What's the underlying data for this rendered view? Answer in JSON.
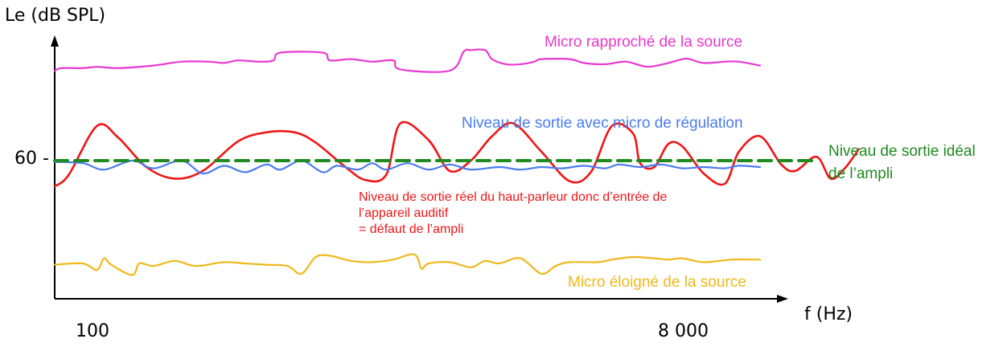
{
  "chart_data": {
    "type": "line",
    "ylabel": "Le (dB SPL)",
    "xlabel": "f (Hz)",
    "x_ticks": [
      "100",
      "8 000"
    ],
    "y_ticks": [
      "60 -"
    ],
    "series": [
      {
        "name": "Micro rapproché de la source",
        "color": "#e838d0",
        "line_style": "solid",
        "points": [
          [
            0,
            -0.7
          ],
          [
            0.01,
            -0.72
          ],
          [
            0.04,
            -0.72
          ],
          [
            0.06,
            -0.73
          ],
          [
            0.09,
            -0.72
          ],
          [
            0.14,
            -0.74
          ],
          [
            0.18,
            -0.77
          ],
          [
            0.22,
            -0.77
          ],
          [
            0.24,
            -0.76
          ],
          [
            0.26,
            -0.78
          ],
          [
            0.29,
            -0.77
          ],
          [
            0.31,
            -0.78
          ],
          [
            0.32,
            -0.84
          ],
          [
            0.38,
            -0.84
          ],
          [
            0.39,
            -0.78
          ],
          [
            0.42,
            -0.79
          ],
          [
            0.45,
            -0.77
          ],
          [
            0.48,
            -0.78
          ],
          [
            0.49,
            -0.71
          ],
          [
            0.56,
            -0.7
          ],
          [
            0.58,
            -0.85
          ],
          [
            0.59,
            -0.86
          ],
          [
            0.61,
            -0.86
          ],
          [
            0.62,
            -0.79
          ],
          [
            0.64,
            -0.75
          ],
          [
            0.66,
            -0.75
          ],
          [
            0.68,
            -0.77
          ],
          [
            0.69,
            -0.79
          ],
          [
            0.73,
            -0.79
          ],
          [
            0.75,
            -0.76
          ],
          [
            0.78,
            -0.75
          ],
          [
            0.81,
            -0.77
          ],
          [
            0.84,
            -0.73
          ],
          [
            0.87,
            -0.76
          ],
          [
            0.89,
            -0.79
          ],
          [
            0.9,
            -0.79
          ],
          [
            0.92,
            -0.76
          ],
          [
            0.95,
            -0.77
          ],
          [
            0.97,
            -0.77
          ],
          [
            1,
            -0.74
          ]
        ]
      },
      {
        "name": "Niveau de sortie avec micro de régulation",
        "color": "#4a7cf0",
        "line_style": "solid",
        "points": [
          [
            0,
            0.01
          ],
          [
            0.04,
            0.02
          ],
          [
            0.07,
            0.07
          ],
          [
            0.11,
            0.0
          ],
          [
            0.14,
            0.06
          ],
          [
            0.18,
            0.0
          ],
          [
            0.21,
            0.1
          ],
          [
            0.24,
            0.04
          ],
          [
            0.27,
            0.09
          ],
          [
            0.3,
            0.03
          ],
          [
            0.32,
            0.07
          ],
          [
            0.35,
            0.0
          ],
          [
            0.38,
            0.09
          ],
          [
            0.4,
            0.04
          ],
          [
            0.43,
            0.07
          ],
          [
            0.45,
            0.02
          ],
          [
            0.47,
            0.07
          ],
          [
            0.5,
            0.02
          ],
          [
            0.53,
            0.07
          ],
          [
            0.56,
            0.03
          ],
          [
            0.59,
            0.07
          ],
          [
            0.63,
            0.05
          ],
          [
            0.66,
            0.07
          ],
          [
            0.69,
            0.05
          ],
          [
            0.72,
            0.06
          ],
          [
            0.75,
            0.04
          ],
          [
            0.78,
            0.06
          ],
          [
            0.8,
            0.03
          ],
          [
            0.83,
            0.05
          ],
          [
            0.86,
            0.03
          ],
          [
            0.89,
            0.06
          ],
          [
            0.92,
            0.05
          ],
          [
            0.95,
            0.06
          ],
          [
            0.97,
            0.04
          ],
          [
            1,
            0.05
          ]
        ]
      },
      {
        "name": "Niveau de sortie idéal de l'ampli",
        "color": "#1f8a1f",
        "line_style": "dashed",
        "points": [
          [
            0,
            0.0
          ],
          [
            1,
            0.0
          ]
        ]
      },
      {
        "name": "Niveau de sortie réel du haut-parleur donc d'entrée de l'appareil auditif = défaut de l'ampli",
        "color": "#ef1616",
        "line_style": "solid",
        "points": [
          [
            0,
            0.2
          ],
          [
            0.02,
            0.11
          ],
          [
            0.06,
            -0.27
          ],
          [
            0.09,
            -0.18
          ],
          [
            0.13,
            0.05
          ],
          [
            0.17,
            0.14
          ],
          [
            0.21,
            0.08
          ],
          [
            0.26,
            -0.15
          ],
          [
            0.3,
            -0.22
          ],
          [
            0.34,
            -0.22
          ],
          [
            0.37,
            -0.14
          ],
          [
            0.41,
            0.04
          ],
          [
            0.44,
            0.15
          ],
          [
            0.47,
            0.11
          ],
          [
            0.49,
            -0.29
          ],
          [
            0.53,
            -0.16
          ],
          [
            0.56,
            0.08
          ],
          [
            0.59,
            0.0
          ],
          [
            0.62,
            -0.19
          ],
          [
            0.65,
            -0.29
          ],
          [
            0.69,
            -0.07
          ],
          [
            0.73,
            0.16
          ],
          [
            0.76,
            0.09
          ],
          [
            0.79,
            -0.27
          ],
          [
            0.82,
            -0.21
          ],
          [
            0.83,
            0.02
          ],
          [
            0.85,
            0.05
          ],
          [
            0.87,
            -0.13
          ],
          [
            0.89,
            -0.11
          ],
          [
            0.92,
            0.1
          ],
          [
            0.95,
            0.18
          ],
          [
            0.97,
            -0.07
          ],
          [
            1,
            -0.19
          ],
          [
            1.03,
            0.03
          ],
          [
            1.05,
            0.08
          ],
          [
            1.08,
            -0.03
          ],
          [
            1.1,
            0.14
          ],
          [
            1.12,
            0.06
          ],
          [
            1.14,
            -0.09
          ]
        ]
      },
      {
        "name": "Micro éloigné de la source",
        "color": "#f0b81a",
        "line_style": "solid",
        "points": [
          [
            0,
            0.81
          ],
          [
            0.04,
            0.8
          ],
          [
            0.06,
            0.85
          ],
          [
            0.07,
            0.76
          ],
          [
            0.08,
            0.81
          ],
          [
            0.11,
            0.89
          ],
          [
            0.12,
            0.8
          ],
          [
            0.14,
            0.82
          ],
          [
            0.17,
            0.78
          ],
          [
            0.2,
            0.82
          ],
          [
            0.24,
            0.79
          ],
          [
            0.27,
            0.8
          ],
          [
            0.3,
            0.81
          ],
          [
            0.33,
            0.82
          ],
          [
            0.35,
            0.88
          ],
          [
            0.37,
            0.75
          ],
          [
            0.39,
            0.74
          ],
          [
            0.42,
            0.78
          ],
          [
            0.45,
            0.79
          ],
          [
            0.48,
            0.77
          ],
          [
            0.51,
            0.73
          ],
          [
            0.52,
            0.84
          ],
          [
            0.53,
            0.8
          ],
          [
            0.56,
            0.79
          ],
          [
            0.59,
            0.83
          ],
          [
            0.61,
            0.78
          ],
          [
            0.63,
            0.8
          ],
          [
            0.66,
            0.76
          ],
          [
            0.69,
            0.88
          ],
          [
            0.71,
            0.82
          ],
          [
            0.73,
            0.79
          ],
          [
            0.77,
            0.79
          ],
          [
            0.79,
            0.77
          ],
          [
            0.82,
            0.75
          ],
          [
            0.85,
            0.76
          ],
          [
            0.87,
            0.77
          ],
          [
            0.89,
            0.76
          ],
          [
            0.92,
            0.79
          ],
          [
            0.96,
            0.77
          ],
          [
            0.99,
            0.77
          ],
          [
            1,
            0.77
          ]
        ]
      }
    ],
    "annotations": {
      "near_mic": "Micro rapproché de la source",
      "regulation": "Niveau de sortie avec micro de régulation",
      "ideal_line1": "Niveau de sortie idéal",
      "ideal_line2": "de l’ampli",
      "real_line1": "Niveau de sortie réel du haut-parleur donc d’entrée de",
      "real_line2": "l’appareil auditif",
      "real_line3": "= défaut de l’ampli",
      "far_mic": "Micro éloigné de la source"
    },
    "grid": false,
    "legend": "none"
  }
}
